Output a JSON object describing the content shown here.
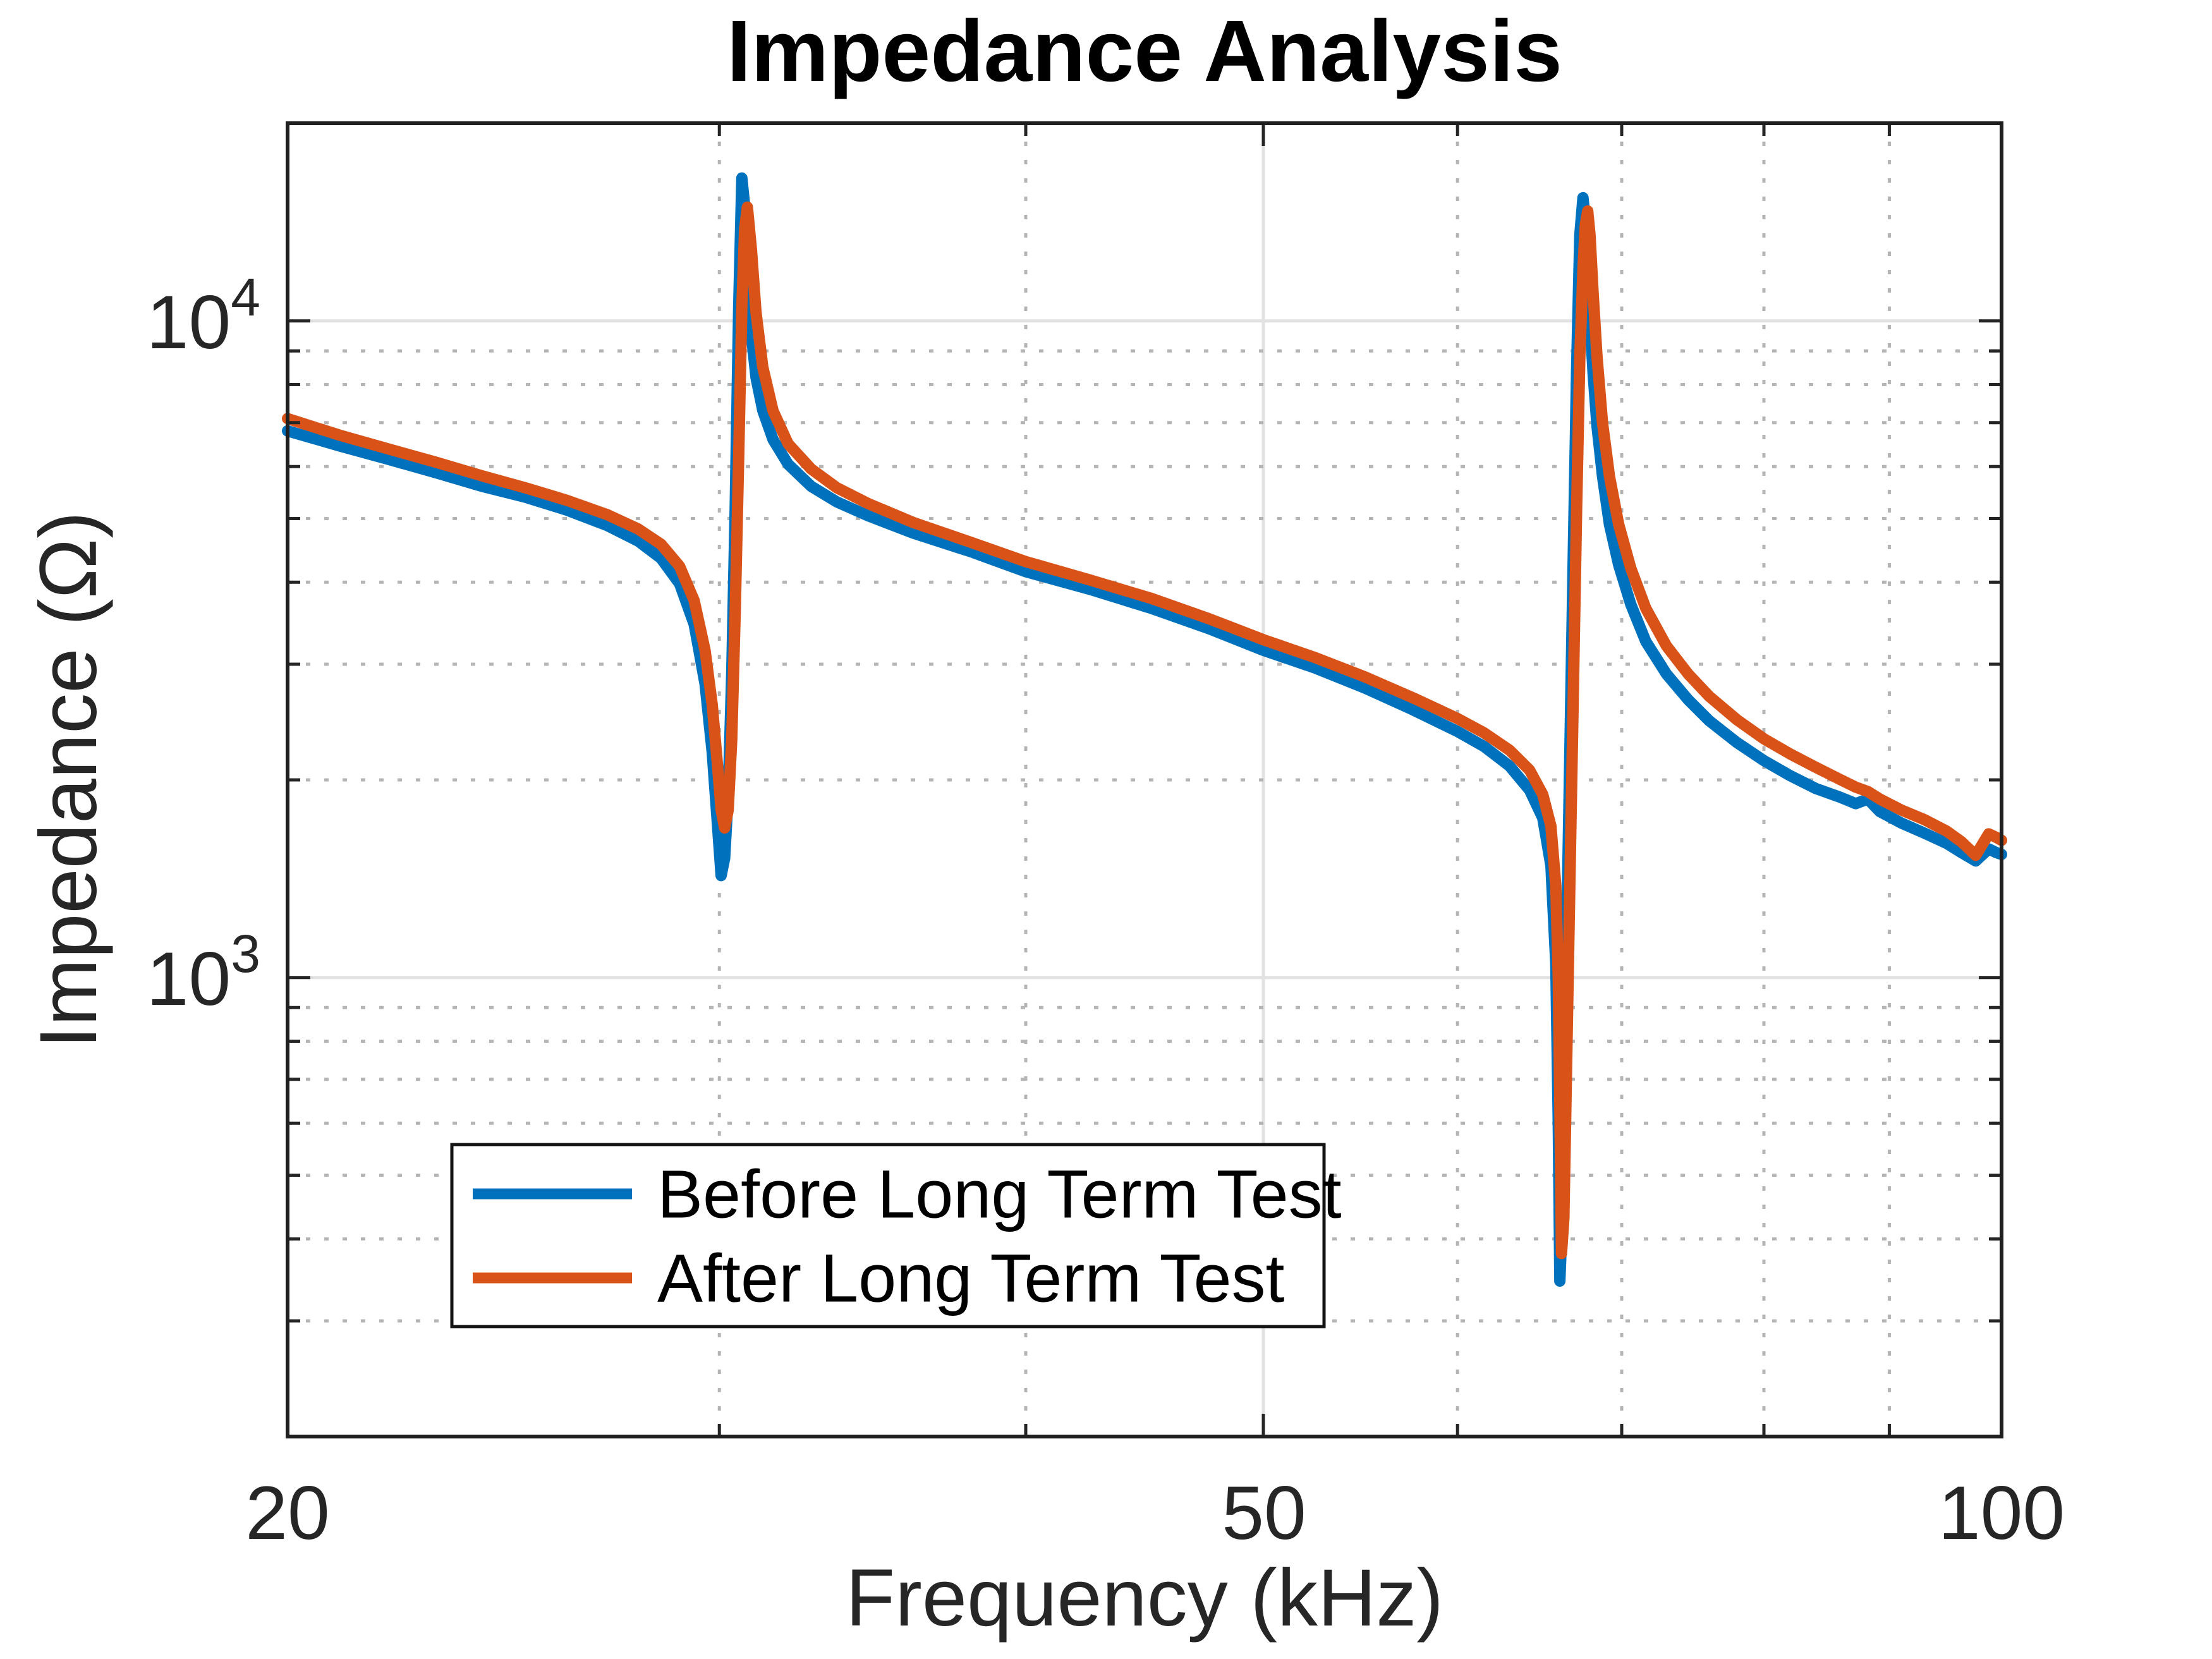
{
  "title": "Impedance Analysis",
  "axes": {
    "xlabel": "Frequency (kHz)",
    "ylabel": "Impedance (Ω)",
    "x_tick_labels": [
      "20",
      "50",
      "100"
    ],
    "y_tick_labels": [
      {
        "base": "10",
        "exp": "3"
      },
      {
        "base": "10",
        "exp": "4"
      }
    ]
  },
  "legend": {
    "items": [
      {
        "label": "Before Long Term Test",
        "color": "#0072BD"
      },
      {
        "label": "After Long Term Test",
        "color": "#D95319"
      }
    ]
  },
  "chart_data": {
    "type": "line",
    "title": "Impedance Analysis",
    "xlabel": "Frequency (kHz)",
    "ylabel": "Impedance (Ω)",
    "x_scale": "log",
    "y_scale": "log",
    "xlim": [
      20,
      100
    ],
    "ylim": [
      200,
      20000
    ],
    "x_major_ticks": [
      20,
      50,
      100
    ],
    "x_minor_ticks": [
      30,
      40,
      60,
      70,
      80,
      90
    ],
    "y_major_ticks": [
      1000,
      10000
    ],
    "y_minor_ticks": [
      300,
      400,
      500,
      600,
      700,
      800,
      900,
      2000,
      3000,
      4000,
      5000,
      6000,
      7000,
      8000,
      9000
    ],
    "grid": "major solid + minor dotted",
    "legend_position": "inside lower-left",
    "x": [
      20.0,
      21.0,
      22.0,
      23.0,
      24.0,
      25.0,
      26.0,
      27.0,
      27.8,
      28.4,
      28.9,
      29.3,
      29.6,
      29.8,
      29.95,
      30.05,
      30.15,
      30.25,
      30.35,
      30.45,
      30.55,
      30.64,
      30.72,
      30.8,
      30.92,
      31.05,
      31.25,
      31.55,
      32.0,
      32.7,
      33.5,
      34.5,
      36.0,
      38.0,
      40.0,
      42.5,
      45.0,
      47.5,
      50.0,
      52.5,
      55.0,
      57.5,
      60.0,
      61.5,
      63.0,
      64.2,
      65.0,
      65.5,
      65.8,
      65.95,
      66.05,
      66.15,
      66.3,
      66.5,
      66.7,
      66.9,
      67.1,
      67.3,
      67.5,
      67.65,
      67.8,
      67.95,
      68.15,
      68.4,
      68.75,
      69.2,
      69.8,
      70.6,
      71.6,
      73.0,
      74.5,
      76.0,
      78.0,
      80.0,
      82.0,
      84.0,
      86.0,
      87.2,
      88.2,
      89.2,
      91.0,
      93.0,
      95.0,
      96.3,
      97.6,
      98.8,
      99.5,
      100.0
    ],
    "series": [
      {
        "name": "Before Long Term Test",
        "color": "#0072BD",
        "values": [
          6800,
          6450,
          6150,
          5870,
          5600,
          5390,
          5150,
          4880,
          4620,
          4350,
          3980,
          3450,
          2800,
          2200,
          1700,
          1430,
          1520,
          1900,
          2900,
          5200,
          10500,
          16500,
          15000,
          12000,
          9500,
          8200,
          7300,
          6600,
          6050,
          5600,
          5300,
          5050,
          4750,
          4450,
          4150,
          3900,
          3650,
          3400,
          3150,
          2960,
          2760,
          2560,
          2370,
          2250,
          2100,
          1930,
          1750,
          1480,
          1050,
          600,
          345,
          400,
          650,
          1250,
          2400,
          4600,
          8500,
          13500,
          15400,
          14200,
          12000,
          10000,
          8300,
          6900,
          5800,
          4900,
          4250,
          3700,
          3250,
          2900,
          2650,
          2460,
          2280,
          2140,
          2030,
          1940,
          1880,
          1840,
          1870,
          1790,
          1720,
          1660,
          1600,
          1550,
          1505,
          1570,
          1550,
          1540
        ]
      },
      {
        "name": "After Long Term Test",
        "color": "#D95319",
        "values": [
          7100,
          6700,
          6380,
          6090,
          5810,
          5570,
          5330,
          5070,
          4820,
          4570,
          4230,
          3750,
          3150,
          2600,
          2100,
          1800,
          1690,
          1800,
          2300,
          3600,
          6200,
          10500,
          13800,
          14900,
          12800,
          10300,
          8500,
          7300,
          6500,
          5950,
          5570,
          5270,
          4930,
          4600,
          4300,
          4030,
          3780,
          3520,
          3270,
          3070,
          2870,
          2670,
          2480,
          2360,
          2220,
          2070,
          1900,
          1700,
          1380,
          1000,
          640,
          380,
          430,
          800,
          1500,
          2800,
          5200,
          8800,
          12000,
          14000,
          14700,
          13500,
          11000,
          8800,
          7000,
          5800,
          4900,
          4200,
          3650,
          3200,
          2900,
          2680,
          2470,
          2310,
          2190,
          2090,
          2000,
          1950,
          1920,
          1870,
          1800,
          1740,
          1670,
          1610,
          1535,
          1655,
          1635,
          1618
        ]
      }
    ]
  }
}
